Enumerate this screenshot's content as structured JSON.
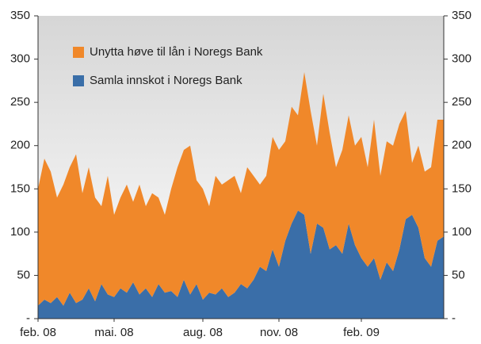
{
  "chart_data": {
    "type": "stacked_area",
    "categories": [
      "feb. 08",
      null,
      null,
      null,
      null,
      null,
      null,
      null,
      null,
      null,
      null,
      null,
      "mai. 08",
      null,
      null,
      null,
      null,
      null,
      null,
      null,
      null,
      null,
      null,
      null,
      null,
      null,
      "aug. 08",
      null,
      null,
      null,
      null,
      null,
      null,
      null,
      null,
      null,
      null,
      null,
      "nov. 08",
      null,
      null,
      null,
      null,
      null,
      null,
      null,
      null,
      null,
      null,
      null,
      null,
      "feb. 09",
      null,
      null,
      null,
      null,
      null,
      null,
      null,
      null,
      null,
      null,
      null,
      null,
      null
    ],
    "series": [
      {
        "name": "Samla innskot i Noregs Bank",
        "color": "#3a6ea8",
        "values": [
          15,
          22,
          18,
          25,
          15,
          30,
          18,
          22,
          35,
          20,
          40,
          28,
          25,
          35,
          30,
          42,
          28,
          35,
          25,
          40,
          30,
          32,
          25,
          45,
          28,
          40,
          22,
          30,
          28,
          35,
          25,
          30,
          40,
          35,
          45,
          60,
          55,
          80,
          60,
          90,
          110,
          125,
          120,
          75,
          110,
          105,
          80,
          85,
          75,
          110,
          85,
          70,
          60,
          70,
          45,
          65,
          55,
          80,
          115,
          120,
          105,
          70,
          60,
          90,
          95
        ]
      },
      {
        "name": "Unytta høve til lån i Noregs Bank",
        "color": "#f0882a",
        "values": [
          135,
          163,
          152,
          115,
          140,
          145,
          172,
          123,
          140,
          120,
          90,
          137,
          95,
          105,
          125,
          93,
          127,
          95,
          120,
          100,
          90,
          118,
          150,
          150,
          172,
          120,
          128,
          100,
          137,
          120,
          135,
          135,
          105,
          140,
          120,
          95,
          110,
          130,
          135,
          115,
          135,
          110,
          165,
          165,
          90,
          155,
          135,
          90,
          120,
          125,
          115,
          140,
          115,
          160,
          120,
          140,
          145,
          145,
          125,
          60,
          95,
          100,
          115,
          140,
          135
        ]
      }
    ],
    "ylim": [
      0,
      350
    ],
    "yticks": [
      {
        "value": 0,
        "label": "-"
      },
      50,
      100,
      150,
      200,
      250,
      300,
      350
    ],
    "y2lim": [
      0,
      350
    ],
    "y2ticks": [
      {
        "value": 0,
        "label": "-"
      },
      50,
      100,
      150,
      200,
      250,
      300,
      350
    ],
    "legend": "upper left"
  }
}
